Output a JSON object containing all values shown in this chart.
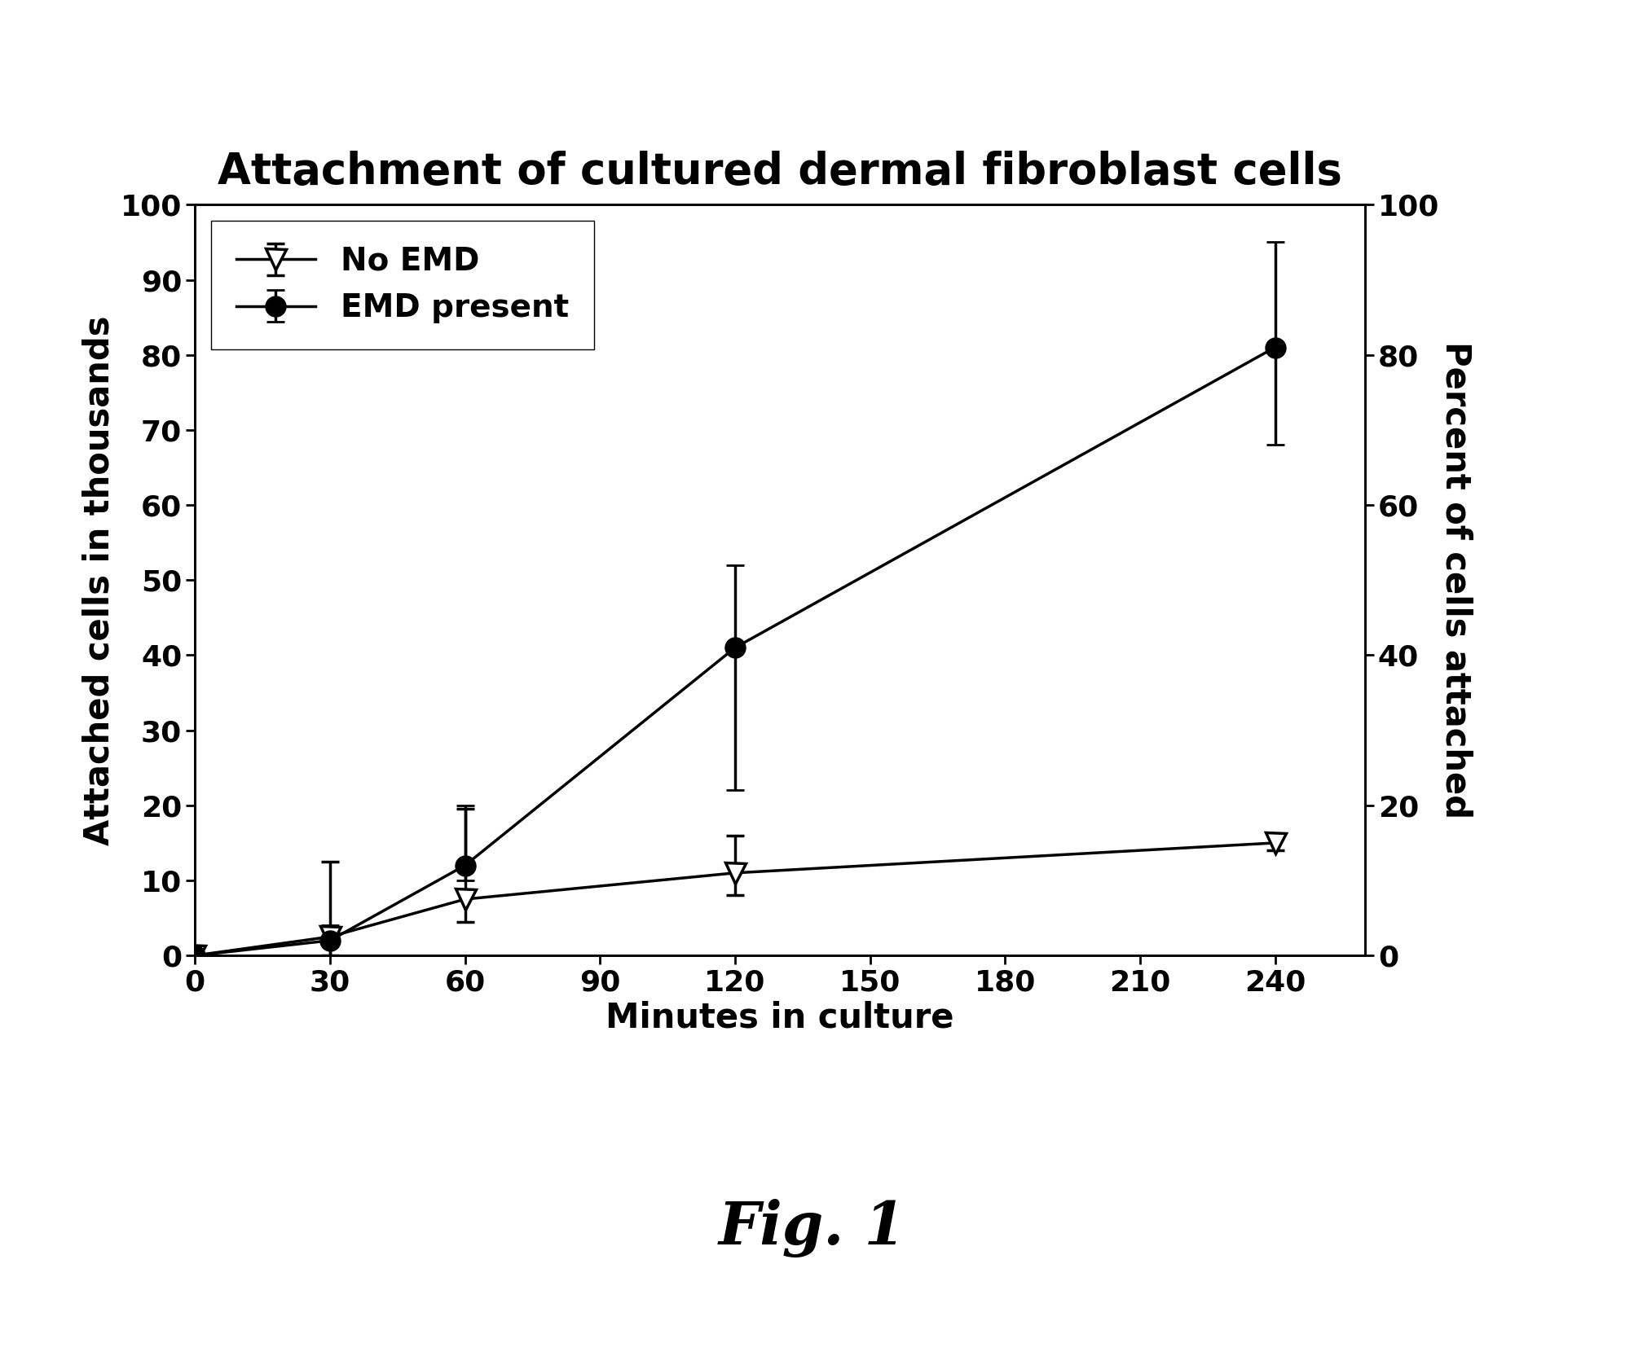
{
  "title": "Attachment of cultured dermal fibroblast cells",
  "xlabel": "Minutes in culture",
  "ylabel_left": "Attached cells in thousands",
  "ylabel_right": "Percent of cells attached",
  "x": [
    0,
    30,
    60,
    120,
    240
  ],
  "no_emd_y": [
    0,
    2.5,
    7.5,
    11,
    15
  ],
  "no_emd_yerr_low": [
    0,
    2.5,
    3,
    3,
    1
  ],
  "no_emd_yerr_high": [
    0,
    10,
    12,
    5,
    1
  ],
  "emd_y": [
    0,
    2,
    12,
    41,
    81
  ],
  "emd_yerr_low": [
    0,
    2,
    2,
    19,
    13
  ],
  "emd_yerr_high": [
    0,
    2,
    8,
    11,
    14
  ],
  "ylim_left": [
    0,
    100
  ],
  "ylim_right": [
    0,
    100
  ],
  "xlim": [
    0,
    260
  ],
  "xticks": [
    0,
    30,
    60,
    90,
    120,
    150,
    180,
    210,
    240
  ],
  "yticks_left": [
    0,
    10,
    20,
    30,
    40,
    50,
    60,
    70,
    80,
    90,
    100
  ],
  "yticks_right": [
    0,
    20,
    40,
    60,
    80,
    100
  ],
  "legend_labels": [
    "No EMD",
    "EMD present"
  ],
  "line_color": "#000000",
  "background_color": "#ffffff",
  "title_fontsize": 38,
  "label_fontsize": 30,
  "tick_fontsize": 26,
  "legend_fontsize": 28,
  "fig_label": "Fig. 1",
  "fig_label_fontsize": 52
}
